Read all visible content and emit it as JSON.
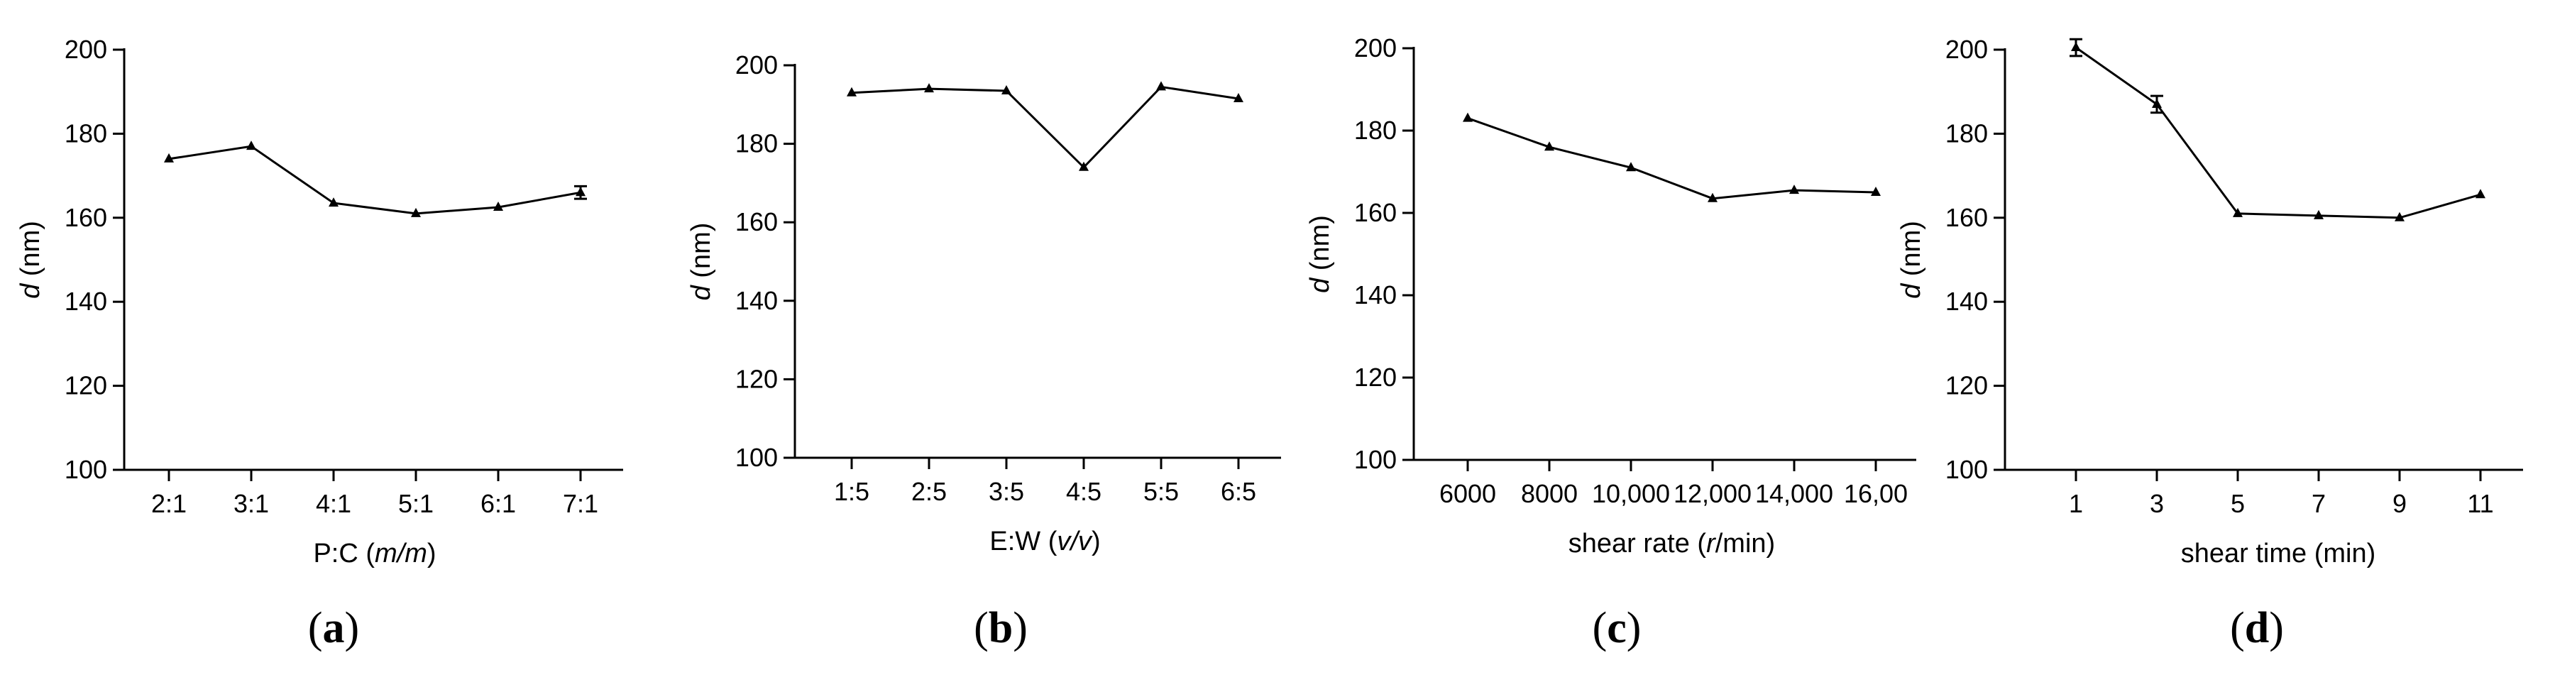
{
  "chart_data": [
    {
      "type": "line",
      "panel": "a",
      "panel_label": {
        "open": "(",
        "letter": "a",
        "close": ")"
      },
      "categories": [
        "2:1",
        "3:1",
        "4:1",
        "5:1",
        "6:1",
        "7:1"
      ],
      "values": [
        174,
        177,
        163.5,
        161,
        162.5,
        166
      ],
      "errors": [
        0,
        0,
        0,
        0,
        0,
        1.5
      ],
      "ylim": [
        100,
        200
      ],
      "yticks": [
        "100",
        "120",
        "140",
        "160",
        "180",
        "200"
      ],
      "ylabel": {
        "var": "d",
        "unit": " (nm)"
      },
      "xlabel": {
        "pre": "P:C (",
        "ital": "m/m",
        "post": ")"
      }
    },
    {
      "type": "line",
      "panel": "b",
      "panel_label": {
        "open": "(",
        "letter": "b",
        "close": ")"
      },
      "categories": [
        "1:5",
        "2:5",
        "3:5",
        "4:5",
        "5:5",
        "6:5"
      ],
      "values": [
        193,
        194,
        193.5,
        174,
        194.5,
        191.5
      ],
      "errors": [
        0,
        0,
        0,
        0,
        0,
        0
      ],
      "ylim": [
        100,
        200
      ],
      "yticks": [
        "100",
        "120",
        "140",
        "160",
        "180",
        "200"
      ],
      "ylabel": {
        "var": "d",
        "unit": " (nm)"
      },
      "xlabel": {
        "pre": "E:W (",
        "ital": "v/v",
        "post": ")"
      }
    },
    {
      "type": "line",
      "panel": "c",
      "panel_label": {
        "open": "(",
        "letter": "c",
        "close": ")"
      },
      "categories": [
        "6000",
        "8000",
        "10,000",
        "12,000",
        "14,000",
        "16,00"
      ],
      "values": [
        183,
        176,
        171,
        163.5,
        165.5,
        165
      ],
      "errors": [
        0,
        0,
        0,
        0,
        0,
        0
      ],
      "ylim": [
        100,
        200
      ],
      "yticks": [
        "100",
        "120",
        "140",
        "160",
        "180",
        "200"
      ],
      "ylabel": {
        "var": "d",
        "unit": " (nm)"
      },
      "xlabel": {
        "pre": "shear rate (",
        "ital": "r",
        "post": "/min)"
      }
    },
    {
      "type": "line",
      "panel": "d",
      "panel_label": {
        "open": "(",
        "letter": "d",
        "close": ")"
      },
      "categories": [
        "1",
        "3",
        "5",
        "7",
        "9",
        "11"
      ],
      "values": [
        200.5,
        187,
        161,
        160.5,
        160,
        165.5
      ],
      "errors": [
        2,
        2,
        0,
        0,
        0,
        0
      ],
      "ylim": [
        100,
        200
      ],
      "yticks": [
        "100",
        "120",
        "140",
        "160",
        "180",
        "200"
      ],
      "ylabel": {
        "var": "d",
        "unit": " (nm)"
      },
      "xlabel": {
        "pre": "shear time (min)",
        "ital": "",
        "post": ""
      }
    }
  ]
}
